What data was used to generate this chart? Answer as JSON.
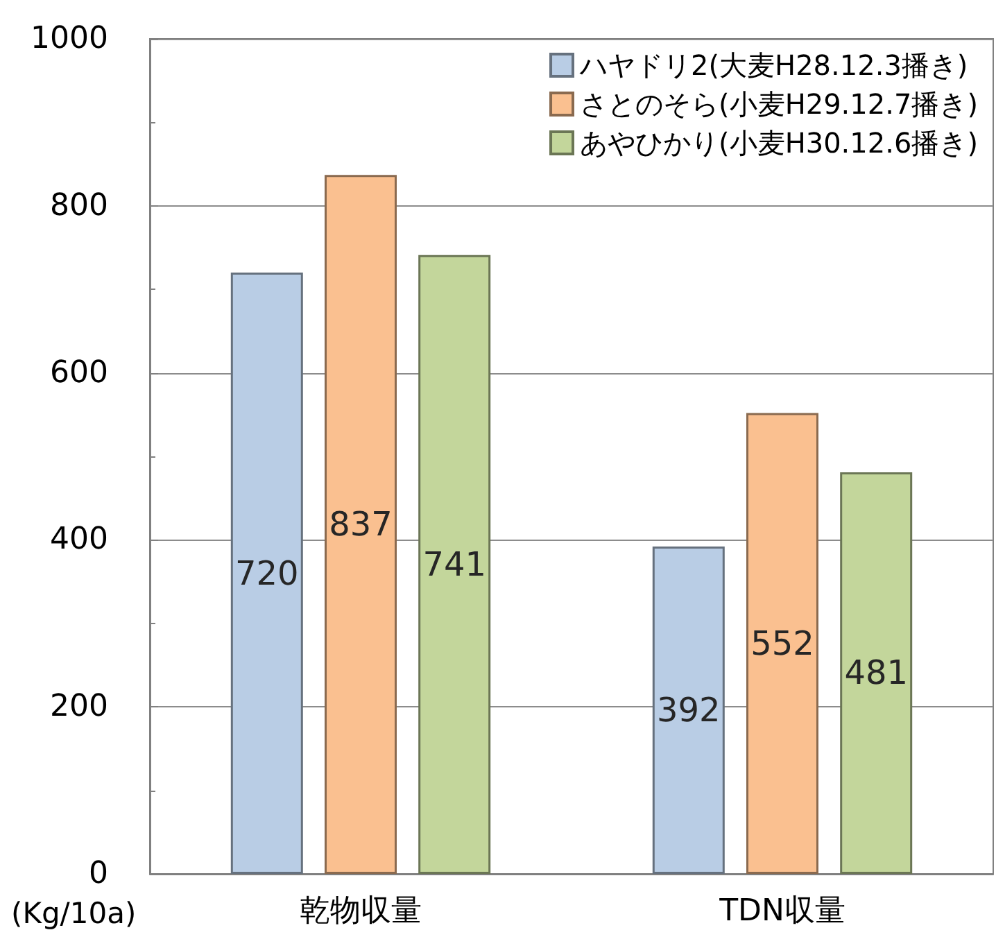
{
  "chart_data": {
    "type": "bar",
    "ylabel": "(Kg/10a)",
    "categories": [
      "乾物収量",
      "TDN収量"
    ],
    "series": [
      {
        "name": "ハヤドリ2(大麦H28.12.3播き)",
        "color": "#b9cde5",
        "values": [
          720,
          392
        ]
      },
      {
        "name": "さとのそら(小麦H29.12.7播き)",
        "color": "#fac090",
        "values": [
          837,
          552
        ]
      },
      {
        "name": "あやひかり(小麦H30.12.6播き)",
        "color": "#c3d69b",
        "values": [
          741,
          481
        ]
      }
    ],
    "ylim": [
      0,
      1000
    ],
    "yticks": [
      0,
      200,
      400,
      600,
      800,
      1000
    ],
    "grid": "y",
    "legend": "top right",
    "data_labels": true
  }
}
